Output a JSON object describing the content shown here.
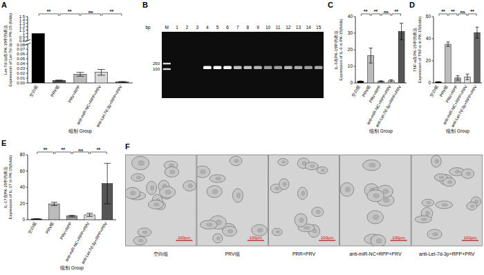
{
  "chart_data": [
    {
      "type": "bar",
      "title": "A",
      "ylabel": [
        "Let-7d-3p在PK-15中的表达",
        "Expression of Let-7d-3p in PK-15 (folds)"
      ],
      "xlabel": "组别 Group",
      "categories": [
        "空白组",
        "PRV组",
        "PRV+RPP",
        "anti-miR-NC+RPP+PRV",
        "anti-Let-7d-3p+RPP+PRV"
      ],
      "values": [
        1,
        0.005,
        0.018,
        0.022,
        0.002
      ],
      "errors": [
        0,
        0.001,
        0.004,
        0.006,
        0.001
      ],
      "colors": [
        "#000000",
        "#555555",
        "#bbbbbb",
        "#d9d9d9",
        "#555555"
      ],
      "ylim": [
        0,
        1.5
      ],
      "yticks": [
        {
          "value": 0,
          "label": "0.00"
        },
        0.01,
        0.02,
        0.03,
        0.04,
        0.05,
        0.06,
        0.07,
        0.08,
        0.8,
        0.9,
        1,
        1.1,
        1.2,
        1.3,
        1.4,
        1.5
      ],
      "annotations": [
        {
          "text": "**",
          "categories": [
            0,
            1
          ]
        },
        {
          "text": "**",
          "categories": [
            1,
            2
          ]
        },
        {
          "text": "ns",
          "categories": [
            2,
            3
          ]
        },
        {
          "text": "**",
          "categories": [
            3,
            4
          ]
        }
      ]
    },
    {
      "type": "bar",
      "title": "C",
      "ylabel": [
        "IL-6在PK-15中的表达",
        "Expression of IL-6 in PK-15(folds)"
      ],
      "xlabel": "组别 Group",
      "categories": [
        "空白组",
        "PRV组",
        "PRV+RPP",
        "anti-miR-NC+RPP+PRV",
        "anti-Let-7d-3p+RPP+PRV"
      ],
      "values": [
        1,
        16.5,
        1,
        1.3,
        31
      ],
      "errors": [
        0.2,
        4.5,
        0.3,
        0.6,
        5
      ],
      "colors": [
        "#000000",
        "#bbbbbb",
        "#999999",
        "#dddddd",
        "#555555"
      ],
      "ylim": [
        0,
        40
      ],
      "yticks": [
        0,
        10,
        20,
        30,
        40
      ],
      "annotations": [
        {
          "text": "**",
          "categories": [
            0,
            1
          ]
        },
        {
          "text": "**",
          "categories": [
            1,
            2
          ]
        },
        {
          "text": "ns",
          "categories": [
            2,
            3
          ]
        },
        {
          "text": "**",
          "categories": [
            3,
            4
          ]
        }
      ]
    },
    {
      "type": "bar",
      "title": "D",
      "ylabel": [
        "TNF-α在PK-15中的表达",
        "Expression of TNF-α in PK-15(folds)"
      ],
      "xlabel": "组别 Group",
      "categories": [
        "空白组",
        "PRV组",
        "PRV+RPP",
        "anti-miR-NC+RPP+PRV",
        "anti-Let-7d-3p+RPP+PRV"
      ],
      "values": [
        1,
        35,
        4.5,
        5.5,
        45.5
      ],
      "errors": [
        0.2,
        2,
        2,
        2.5,
        5
      ],
      "colors": [
        "#000000",
        "#bdbdbd",
        "#aaaaaa",
        "#dddddd",
        "#666666"
      ],
      "ylim": [
        0,
        60
      ],
      "yticks": [
        0,
        20,
        40,
        60
      ],
      "annotations": [
        {
          "text": "**",
          "categories": [
            0,
            1
          ]
        },
        {
          "text": "**",
          "categories": [
            1,
            2
          ]
        },
        {
          "text": "ns",
          "categories": [
            2,
            3
          ]
        },
        {
          "text": "**",
          "categories": [
            3,
            4
          ]
        }
      ]
    },
    {
      "type": "bar",
      "title": "E",
      "ylabel": [
        "IL-17在PK-15中的表达",
        "Expression of IL-17 in PK-15(folds)"
      ],
      "xlabel": "组别 Group",
      "categories": [
        "空白组",
        "PRV组",
        "PRV+RPP",
        "anti-miR-NC+RPP+PRV",
        "anti-Let-7d-3p+RPP+PRV"
      ],
      "values": [
        1,
        19.5,
        4.5,
        6,
        44.5
      ],
      "errors": [
        0.3,
        2,
        1,
        2,
        25
      ],
      "colors": [
        "#000000",
        "#bbbbbb",
        "#999999",
        "#dddddd",
        "#555555"
      ],
      "ylim": [
        0,
        80
      ],
      "yticks": [
        0,
        20,
        40,
        60,
        80
      ],
      "annotations": [
        {
          "text": "**",
          "categories": [
            0,
            1
          ]
        },
        {
          "text": "**",
          "categories": [
            1,
            2
          ]
        },
        {
          "text": "ns",
          "categories": [
            2,
            3
          ]
        },
        {
          "text": "**",
          "categories": [
            3,
            4
          ]
        }
      ]
    }
  ],
  "gel": {
    "title": "B",
    "unit": "bp",
    "lanes": [
      "M",
      "1",
      "2",
      "3",
      "4",
      "5",
      "6",
      "7",
      "8",
      "9",
      "10",
      "11",
      "12",
      "13",
      "14",
      "15"
    ],
    "ladder": [
      250,
      100
    ],
    "band_intensity": [
      0,
      0,
      0,
      1,
      1,
      1,
      0.75,
      0.75,
      0.7,
      0.6,
      0.6,
      0.7,
      0.65,
      0.6,
      0.65
    ]
  },
  "micrographs": {
    "title": "F",
    "panels": [
      "空白组",
      "PRV组",
      "PRR+PRV",
      "anti-miR-NC+RPP+PRV",
      "anti-Let-7d-3p+RPP+PRV"
    ],
    "scale_bar": "100μm"
  }
}
